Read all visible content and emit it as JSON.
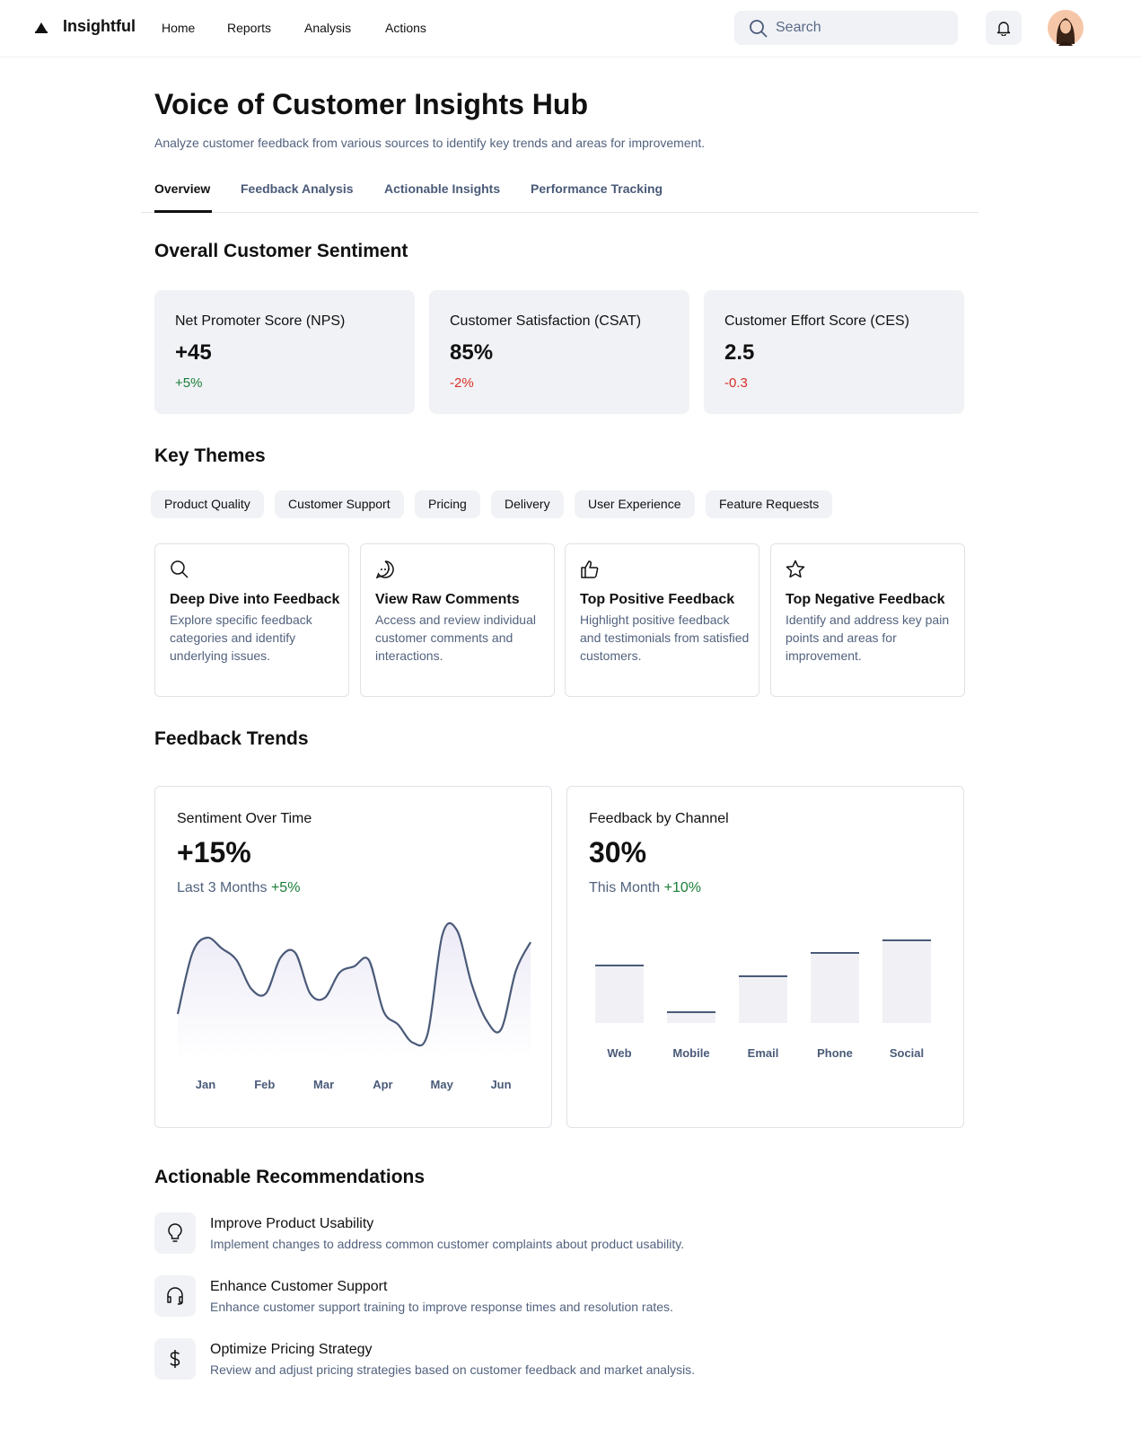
{
  "nav": {
    "brand": "Insightful",
    "links": [
      "Home",
      "Reports",
      "Analysis",
      "Actions"
    ],
    "search_placeholder": "Search"
  },
  "header": {
    "title": "Voice of Customer Insights Hub",
    "subtitle": "Analyze customer feedback from various sources to identify key trends and areas for improvement."
  },
  "tabs": [
    "Overview",
    "Feedback Analysis",
    "Actionable Insights",
    "Performance Tracking"
  ],
  "sentiment": {
    "title": "Overall Customer Sentiment",
    "cards": [
      {
        "label": "Net Promoter Score (NPS)",
        "value": "+45",
        "change": "+5%",
        "color": "#1a7f37"
      },
      {
        "label": "Customer Satisfaction (CSAT)",
        "value": "85%",
        "change": "-2%",
        "color": "#d93025"
      },
      {
        "label": "Customer Effort Score (CES)",
        "value": "2.5",
        "change": "-0.3",
        "color": "#d93025"
      }
    ]
  },
  "themes": {
    "title": "Key Themes",
    "tags": [
      "Product Quality",
      "Customer Support",
      "Pricing",
      "Delivery",
      "User Experience",
      "Feature Requests"
    ],
    "cards": [
      {
        "title": "Deep Dive into Feedback",
        "description": "Explore specific feedback categories and identify underlying issues."
      },
      {
        "title": "View Raw Comments",
        "description": "Access and review individual customer comments and interactions."
      },
      {
        "title": "Top Positive Feedback",
        "description": "Highlight positive feedback and testimonials from satisfied customers."
      },
      {
        "title": "Top Negative Feedback",
        "description": "Identify and address key pain points and areas for improvement."
      }
    ]
  },
  "trends": {
    "title": "Feedback Trends",
    "charts": [
      {
        "type": "line",
        "title": "Sentiment Over Time",
        "value": "+15%",
        "period": "Last 3 Months",
        "change": "+5%",
        "color": "#4a5a78",
        "x_labels": [
          "Jan",
          "Feb",
          "Mar",
          "Apr",
          "May",
          "Jun"
        ],
        "values": [
          42,
          110,
          127,
          115,
          102,
          70,
          65,
          105,
          110,
          65,
          60,
          88,
          95,
          102,
          45,
          30,
          10,
          20,
          130,
          135,
          75,
          35,
          25,
          90,
          122
        ]
      },
      {
        "type": "bar",
        "title": "Feedback by Channel",
        "value": "30%",
        "period": "This Month",
        "change": "+10%",
        "color": "#f1f1f5",
        "categories": [
          "Web",
          "Mobile",
          "Email",
          "Phone",
          "Social"
        ],
        "values": [
          64,
          12,
          52,
          78,
          92
        ]
      }
    ]
  },
  "recommendations": {
    "title": "Actionable Recommendations",
    "items": [
      {
        "title": "Improve Product Usability",
        "description": "Implement changes to address common customer complaints about product usability."
      },
      {
        "title": "Enhance Customer Support",
        "description": "Enhance customer support training to improve response times and resolution rates."
      },
      {
        "title": "Optimize Pricing Strategy",
        "description": "Review and adjust pricing strategies based on customer feedback and market analysis."
      }
    ]
  }
}
